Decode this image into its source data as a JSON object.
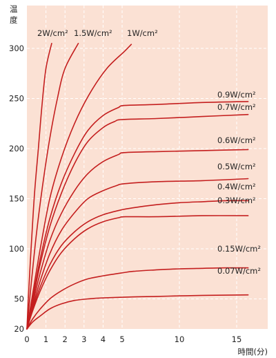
{
  "chart_data": {
    "type": "line",
    "ylabel": "温度",
    "xlabel": "時間(分)",
    "xlim": [
      0,
      18.5
    ],
    "ylim": [
      20,
      330
    ],
    "x_ticks": [
      0,
      1,
      2,
      3,
      4,
      5,
      10,
      15
    ],
    "y_ticks": [
      20,
      50,
      100,
      150,
      200,
      250,
      300
    ],
    "plot_background": "#fbe1d4",
    "line_color": "#c41e1e",
    "grid": true,
    "series": [
      {
        "name": "2W/cm²",
        "points": [
          [
            0,
            20
          ],
          [
            0.1,
            60
          ],
          [
            0.25,
            110
          ],
          [
            0.4,
            155
          ],
          [
            0.6,
            200
          ],
          [
            0.8,
            245
          ],
          [
            1,
            280
          ],
          [
            1.3,
            305
          ]
        ]
      },
      {
        "name": "1.5W/cm²",
        "points": [
          [
            0,
            20
          ],
          [
            0.2,
            60
          ],
          [
            0.5,
            115
          ],
          [
            0.8,
            160
          ],
          [
            1.2,
            210
          ],
          [
            1.6,
            250
          ],
          [
            2,
            280
          ],
          [
            2.7,
            305
          ]
        ]
      },
      {
        "name": "1W/cm²",
        "points": [
          [
            0,
            20
          ],
          [
            0.3,
            55
          ],
          [
            0.7,
            100
          ],
          [
            1.2,
            150
          ],
          [
            1.8,
            190
          ],
          [
            2.5,
            225
          ],
          [
            3.3,
            255
          ],
          [
            4.2,
            280
          ],
          [
            5.2,
            297
          ],
          [
            5.8,
            304
          ]
        ]
      },
      {
        "name": "0.9W/cm²",
        "points": [
          [
            0,
            20
          ],
          [
            0.3,
            50
          ],
          [
            0.7,
            90
          ],
          [
            1.2,
            130
          ],
          [
            1.8,
            165
          ],
          [
            2.5,
            195
          ],
          [
            3.2,
            218
          ],
          [
            4,
            233
          ],
          [
            4.8,
            241
          ],
          [
            5.2,
            243
          ],
          [
            8,
            244
          ],
          [
            12,
            246
          ],
          [
            16,
            247
          ]
        ]
      },
      {
        "name": "0.7W/cm²",
        "points": [
          [
            0,
            20
          ],
          [
            0.3,
            48
          ],
          [
            0.7,
            85
          ],
          [
            1.2,
            122
          ],
          [
            1.8,
            155
          ],
          [
            2.5,
            185
          ],
          [
            3.2,
            207
          ],
          [
            4,
            221
          ],
          [
            4.6,
            227
          ],
          [
            5,
            229
          ],
          [
            8,
            230
          ],
          [
            12,
            232
          ],
          [
            16,
            234
          ]
        ]
      },
      {
        "name": "0.6W/cm²",
        "points": [
          [
            0,
            20
          ],
          [
            0.3,
            45
          ],
          [
            0.7,
            76
          ],
          [
            1.2,
            108
          ],
          [
            1.8,
            135
          ],
          [
            2.5,
            158
          ],
          [
            3.2,
            175
          ],
          [
            4,
            187
          ],
          [
            4.8,
            194
          ],
          [
            5.2,
            196
          ],
          [
            8,
            197
          ],
          [
            12,
            198
          ],
          [
            16,
            199
          ]
        ]
      },
      {
        "name": "0.5W/cm²",
        "points": [
          [
            0,
            20
          ],
          [
            0.3,
            42
          ],
          [
            0.7,
            68
          ],
          [
            1.2,
            95
          ],
          [
            1.8,
            118
          ],
          [
            2.5,
            136
          ],
          [
            3.2,
            150
          ],
          [
            4,
            158
          ],
          [
            4.7,
            163
          ],
          [
            5.2,
            165
          ],
          [
            8,
            167
          ],
          [
            12,
            168
          ],
          [
            16,
            170
          ]
        ]
      },
      {
        "name": "0.4W/cm²",
        "points": [
          [
            0,
            20
          ],
          [
            0.3,
            40
          ],
          [
            0.7,
            62
          ],
          [
            1.2,
            84
          ],
          [
            1.8,
            103
          ],
          [
            2.5,
            117
          ],
          [
            3.2,
            127
          ],
          [
            4,
            134
          ],
          [
            5,
            139
          ],
          [
            6,
            141
          ],
          [
            8,
            144
          ],
          [
            10,
            146
          ],
          [
            12,
            147
          ],
          [
            14,
            148
          ],
          [
            16,
            148
          ]
        ]
      },
      {
        "name": "0.3W/cm²",
        "points": [
          [
            0,
            20
          ],
          [
            0.3,
            38
          ],
          [
            0.7,
            58
          ],
          [
            1.2,
            78
          ],
          [
            1.8,
            96
          ],
          [
            2.5,
            110
          ],
          [
            3.2,
            120
          ],
          [
            4,
            127
          ],
          [
            4.8,
            131
          ],
          [
            5.3,
            132
          ],
          [
            8,
            132
          ],
          [
            12,
            133
          ],
          [
            16,
            133
          ]
        ]
      },
      {
        "name": "0.15W/cm²",
        "points": [
          [
            0,
            20
          ],
          [
            0.3,
            30
          ],
          [
            0.7,
            40
          ],
          [
            1.2,
            50
          ],
          [
            1.8,
            58
          ],
          [
            2.5,
            65
          ],
          [
            3.2,
            70
          ],
          [
            4,
            73
          ],
          [
            5,
            76
          ],
          [
            6,
            77.5
          ],
          [
            8,
            79
          ],
          [
            10,
            80
          ],
          [
            12,
            80.5
          ],
          [
            14,
            81
          ],
          [
            16,
            81
          ]
        ]
      },
      {
        "name": "0.07W/cm²",
        "points": [
          [
            0,
            20
          ],
          [
            0.3,
            27
          ],
          [
            0.7,
            33
          ],
          [
            1.2,
            40
          ],
          [
            1.8,
            45
          ],
          [
            2.5,
            48.5
          ],
          [
            3.2,
            50
          ],
          [
            4,
            51
          ],
          [
            6,
            52
          ],
          [
            8,
            52.5
          ],
          [
            10,
            53
          ],
          [
            12,
            53.5
          ],
          [
            16,
            54
          ]
        ]
      }
    ]
  }
}
